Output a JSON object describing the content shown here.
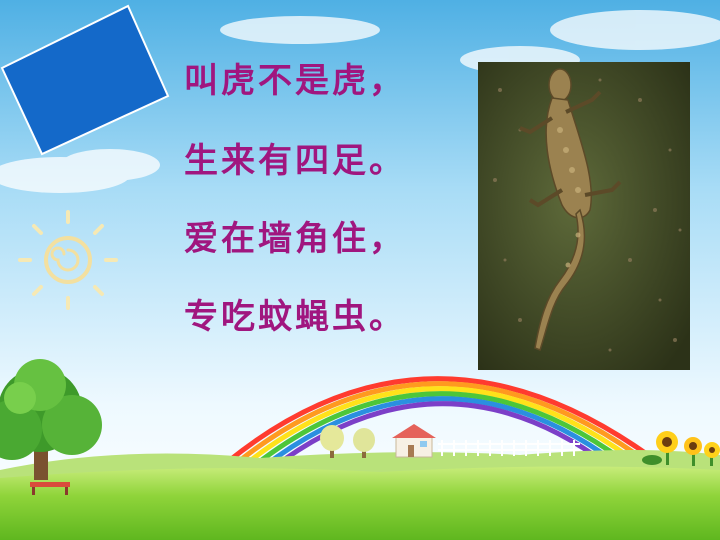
{
  "riddle": {
    "lines": [
      "叫虎不是虎，",
      "生来有四足。",
      "爱在墙角住，",
      "专吃蚊蝇虫。"
    ]
  },
  "colors": {
    "text": "#a0167f",
    "sky_top": "#57b6e6",
    "sky_bottom": "#f2fbff",
    "grass": "#7ccf2a",
    "blue_card": "#1469c9"
  },
  "illustrations": [
    "blue-card",
    "sun-icon",
    "rainbow",
    "tree",
    "house",
    "fence",
    "sunflowers",
    "gecko-photo"
  ]
}
